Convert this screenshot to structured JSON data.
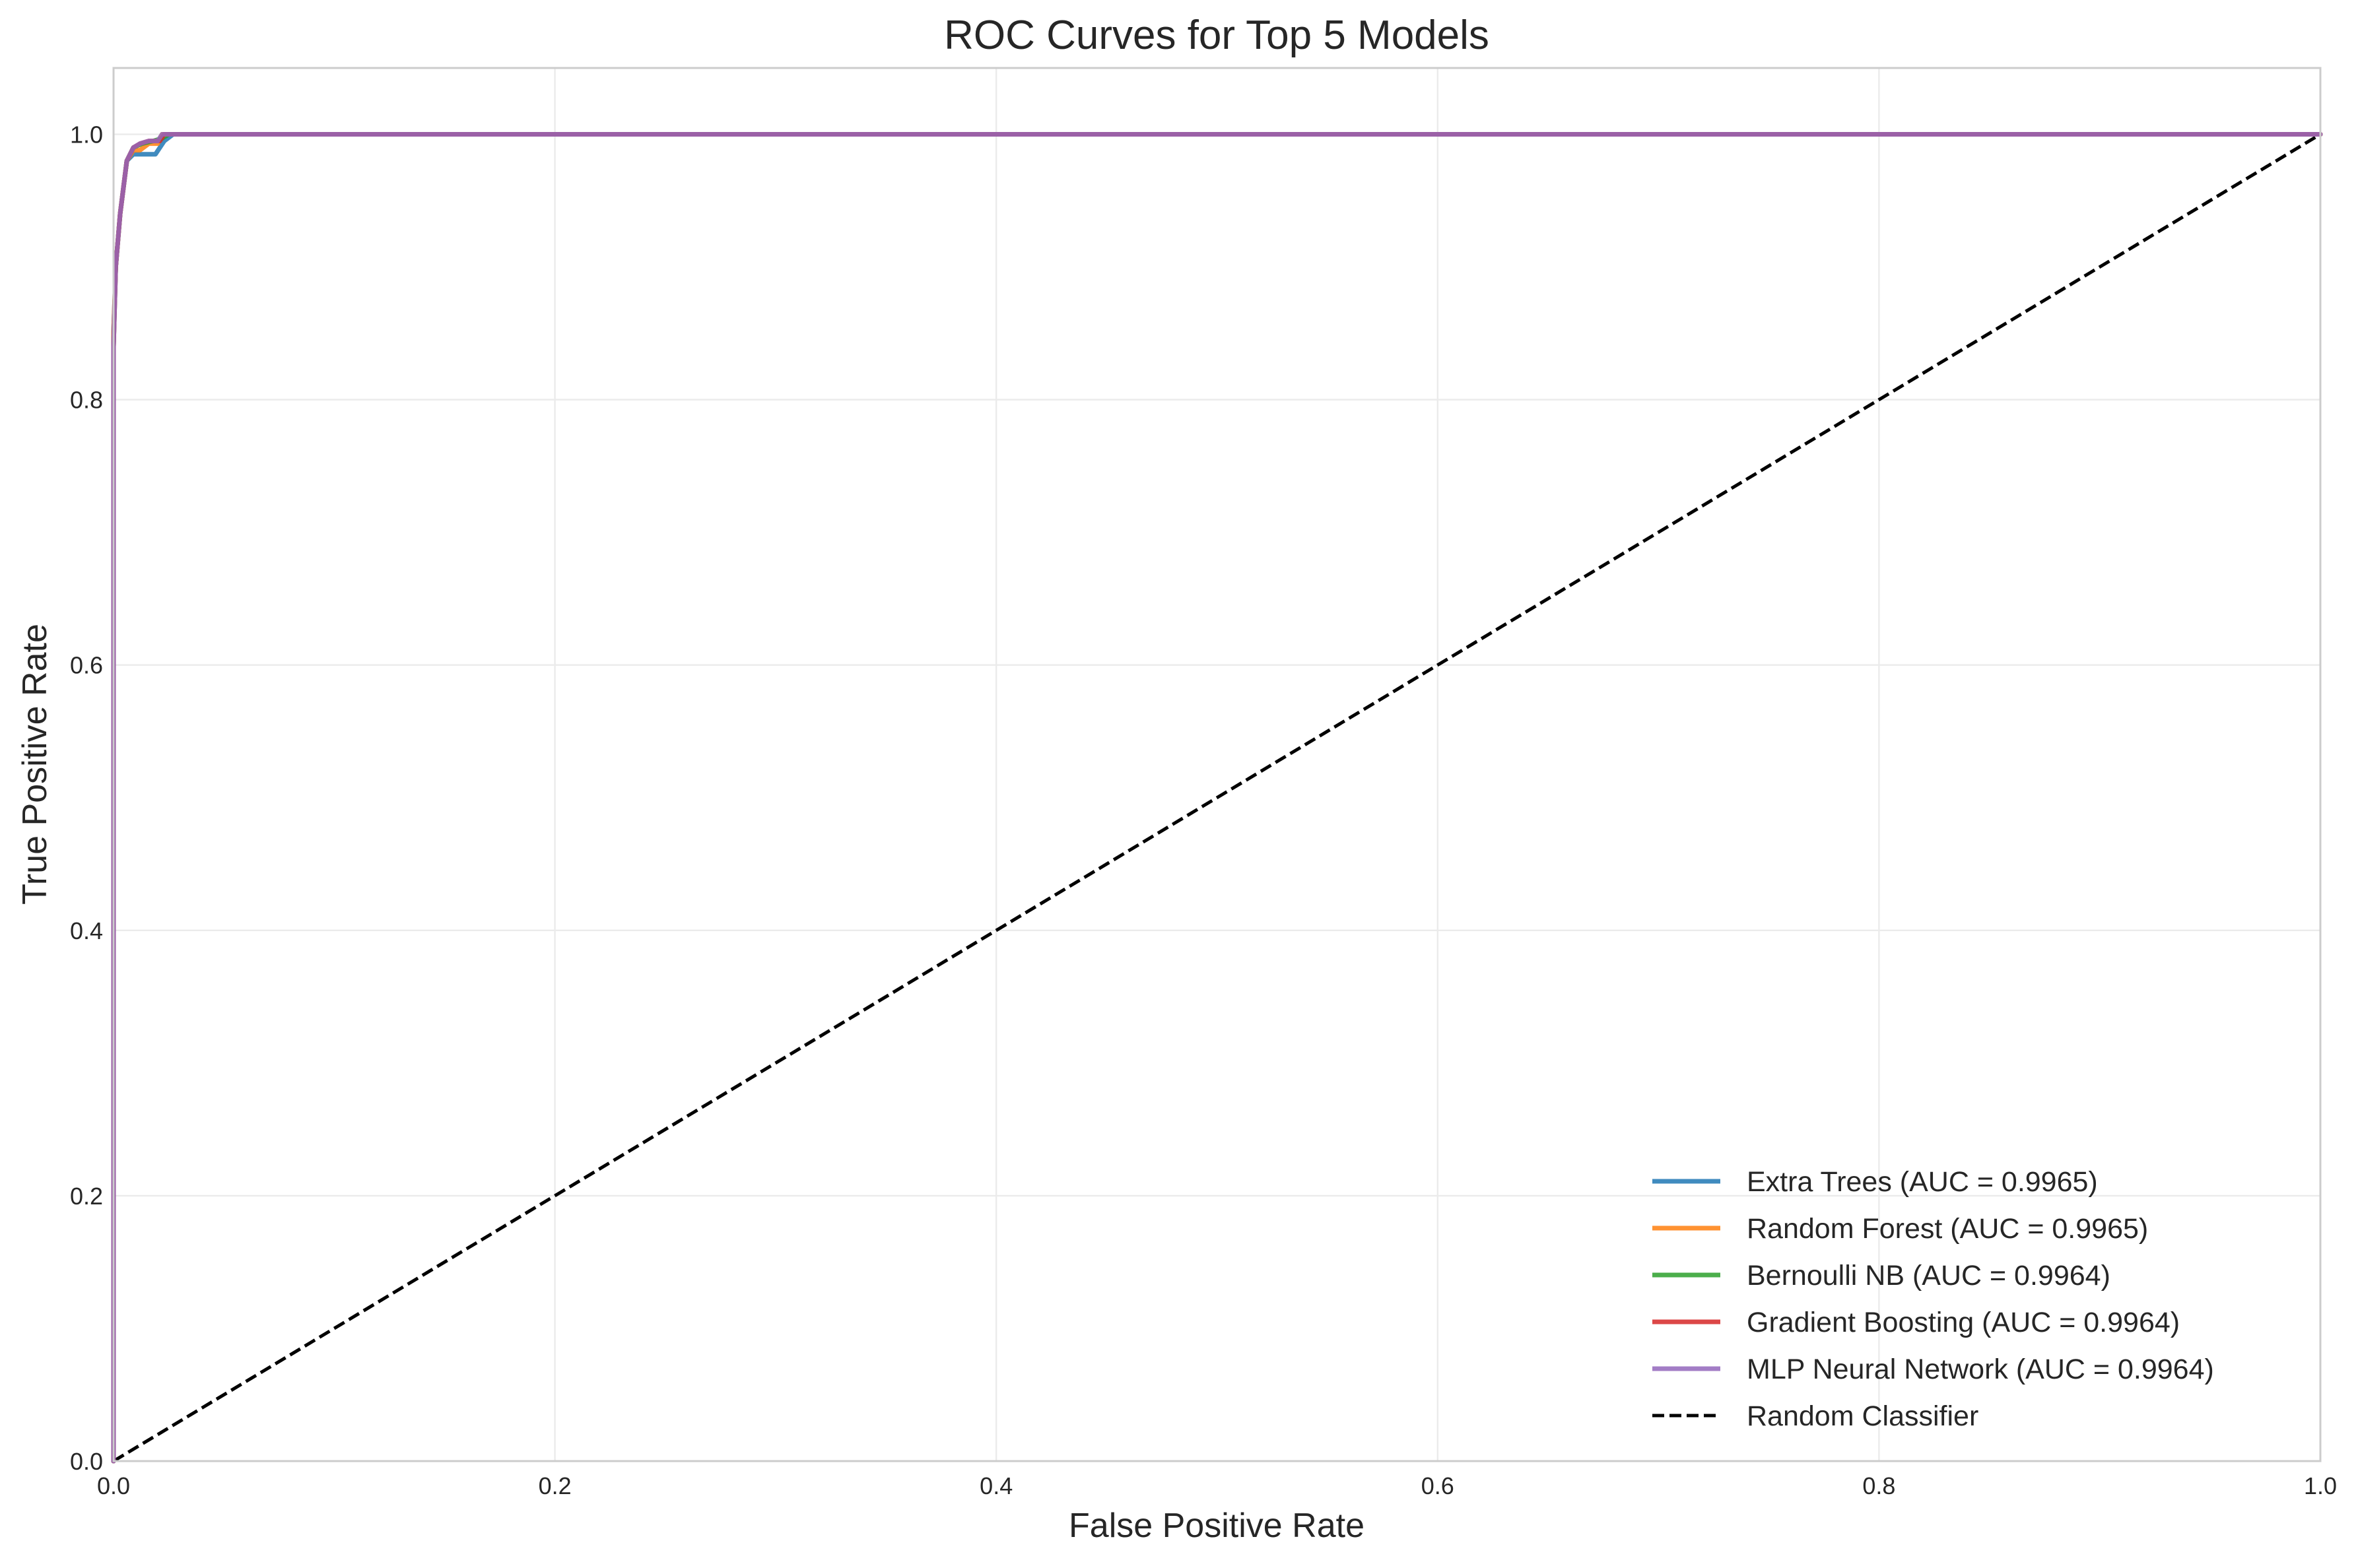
{
  "chart_data": {
    "type": "line",
    "title": "ROC Curves for Top 5 Models",
    "xlabel": "False Positive Rate",
    "ylabel": "True Positive Rate",
    "xlim": [
      0,
      1
    ],
    "ylim": [
      0,
      1.05
    ],
    "xticks": [
      "0.0",
      "0.2",
      "0.4",
      "0.6",
      "0.8",
      "1.0"
    ],
    "yticks": [
      "0.0",
      "0.2",
      "0.4",
      "0.6",
      "0.8",
      "1.0"
    ],
    "grid": true,
    "legend_position": "lower-right",
    "series": [
      {
        "name": "Extra Trees (AUC = 0.9965)",
        "color": "#1f77b4",
        "x": [
          0,
          0,
          0.001,
          0.003,
          0.006,
          0.009,
          0.012,
          0.015,
          0.019,
          0.023,
          0.027,
          1.0
        ],
        "y": [
          0,
          0.85,
          0.9,
          0.94,
          0.98,
          0.985,
          0.985,
          0.985,
          0.985,
          0.995,
          1.0,
          1.0
        ]
      },
      {
        "name": "Random Forest (AUC = 0.9965)",
        "color": "#ff7f0e",
        "x": [
          0,
          0,
          0.001,
          0.003,
          0.006,
          0.009,
          0.012,
          0.016,
          0.02,
          0.022,
          1.0
        ],
        "y": [
          0,
          0.85,
          0.9,
          0.94,
          0.98,
          0.988,
          0.988,
          0.993,
          0.993,
          1.0,
          1.0
        ]
      },
      {
        "name": "Bernoulli NB (AUC = 0.9964)",
        "color": "#2ca02c",
        "x": [
          0,
          0,
          0.001,
          0.003,
          0.006,
          0.009,
          0.013,
          0.018,
          0.022,
          0.025,
          1.0
        ],
        "y": [
          0,
          0.84,
          0.9,
          0.94,
          0.98,
          0.99,
          0.993,
          0.995,
          0.997,
          1.0,
          1.0
        ]
      },
      {
        "name": "Gradient Boosting (AUC = 0.9964)",
        "color": "#d62728",
        "x": [
          0,
          0,
          0.001,
          0.003,
          0.006,
          0.009,
          0.012,
          0.016,
          0.021,
          0.023,
          1.0
        ],
        "y": [
          0,
          0.84,
          0.9,
          0.94,
          0.98,
          0.99,
          0.993,
          0.995,
          0.995,
          1.0,
          1.0
        ]
      },
      {
        "name": "MLP Neural Network (AUC = 0.9964)",
        "color": "#9467bd",
        "x": [
          0,
          0,
          0.001,
          0.003,
          0.006,
          0.009,
          0.012,
          0.016,
          0.02,
          0.022,
          1.0
        ],
        "y": [
          0,
          0.84,
          0.9,
          0.94,
          0.98,
          0.99,
          0.993,
          0.995,
          0.995,
          1.0,
          1.0
        ]
      },
      {
        "name": "Random Classifier",
        "color": "#000000",
        "dashed": true,
        "x": [
          0,
          1
        ],
        "y": [
          0,
          1
        ]
      }
    ]
  }
}
